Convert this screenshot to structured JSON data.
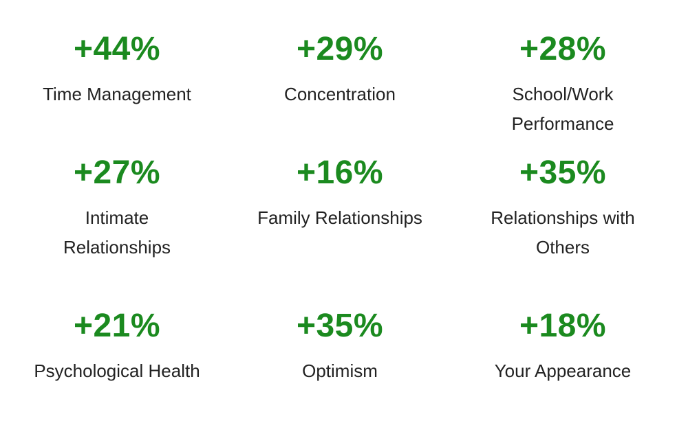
{
  "page": {
    "background": "#ffffff"
  },
  "colors": {
    "value_green": "#1b8a1f",
    "label_dark": "#222222"
  },
  "stats": [
    {
      "value": "+44%",
      "label": "Time Management",
      "lines": [
        "Time Management"
      ]
    },
    {
      "value": "+29%",
      "label": "Concentration",
      "lines": [
        "Concentration"
      ]
    },
    {
      "value": "+28%",
      "label": "School/Work Performance",
      "lines": [
        "School/Work",
        "Performance"
      ]
    },
    {
      "value": "+27%",
      "label": "Intimate Relationships",
      "lines": [
        "Intimate",
        "Relationships"
      ]
    },
    {
      "value": "+16%",
      "label": "Family Relationships",
      "lines": [
        "Family Relationships"
      ]
    },
    {
      "value": "+35%",
      "label": "Relationships with Others",
      "lines": [
        "Relationships with",
        "Others"
      ]
    },
    {
      "value": "+21%",
      "label": "Psychological Health",
      "lines": [
        "Psychological Health"
      ]
    },
    {
      "value": "+35%",
      "label": "Optimism",
      "lines": [
        "Optimism"
      ]
    },
    {
      "value": "+18%",
      "label": "Your Appearance",
      "lines": [
        "Your Appearance"
      ]
    }
  ],
  "chart_data": {
    "type": "table",
    "title": "",
    "layout": "3x3 stat grid, values above labels, no axes, no gridlines",
    "categories": [
      "Time Management",
      "Concentration",
      "School/Work Performance",
      "Intimate Relationships",
      "Family Relationships",
      "Relationships with Others",
      "Psychological Health",
      "Optimism",
      "Your Appearance"
    ],
    "values": [
      44,
      29,
      28,
      27,
      16,
      35,
      21,
      35,
      18
    ],
    "value_labels": [
      "+44%",
      "+29%",
      "+28%",
      "+27%",
      "+16%",
      "+35%",
      "+21%",
      "+35%",
      "+18%"
    ],
    "value_unit": "percent improvement"
  }
}
